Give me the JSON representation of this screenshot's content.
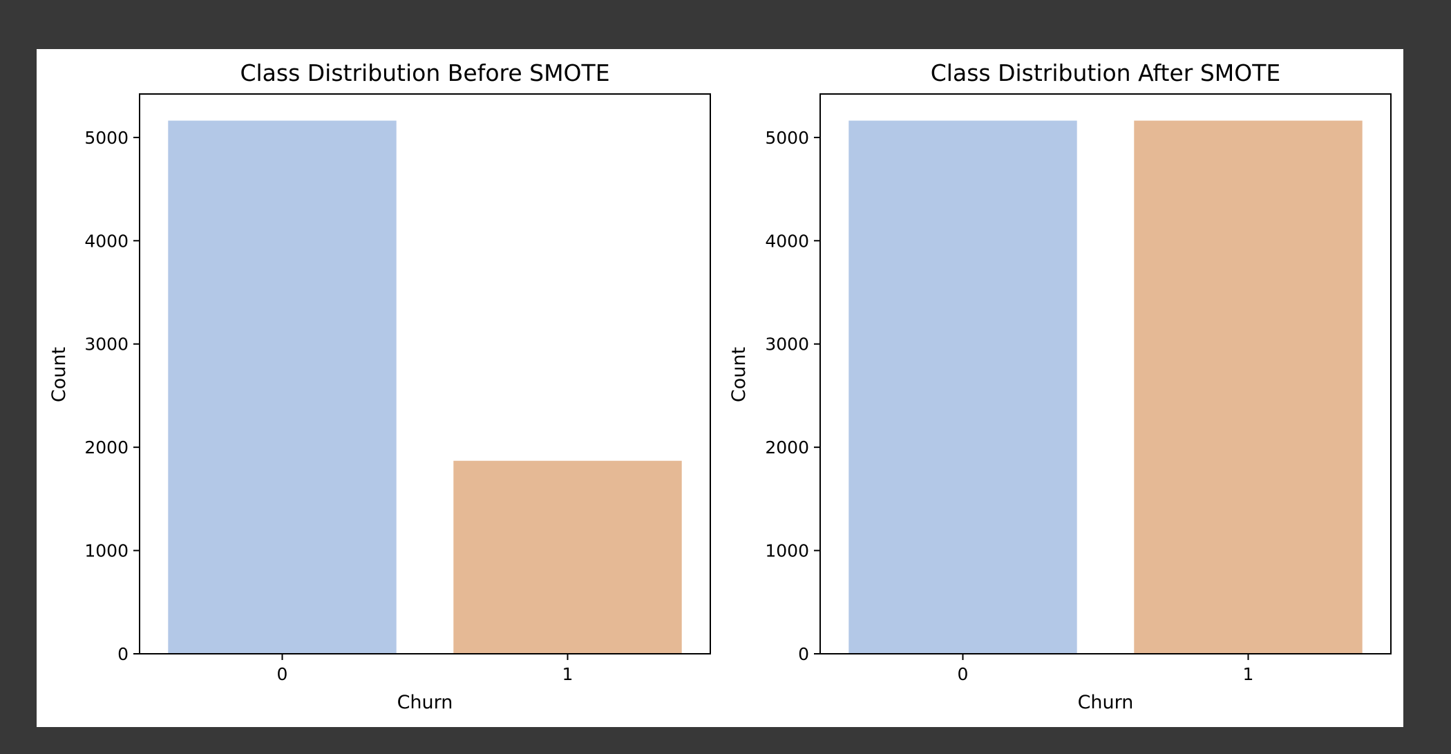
{
  "colors": {
    "background": "#383838",
    "canvas": "#ffffff",
    "frame": "#000000"
  },
  "chart_data": [
    {
      "type": "bar",
      "title": "Class Distribution Before SMOTE",
      "xlabel": "Churn",
      "ylabel": "Count",
      "categories": [
        "0",
        "1"
      ],
      "values": [
        5163,
        1869
      ],
      "colors": [
        "#b3c8e7",
        "#e5b995"
      ],
      "yticks": [
        0,
        1000,
        2000,
        3000,
        4000,
        5000
      ],
      "ylim": [
        0,
        5421
      ],
      "grid": false
    },
    {
      "type": "bar",
      "title": "Class Distribution After SMOTE",
      "xlabel": "Churn",
      "ylabel": "Count",
      "categories": [
        "0",
        "1"
      ],
      "values": [
        5163,
        5163
      ],
      "colors": [
        "#b3c8e7",
        "#e5b995"
      ],
      "yticks": [
        0,
        1000,
        2000,
        3000,
        4000,
        5000
      ],
      "ylim": [
        0,
        5421
      ],
      "grid": false
    }
  ]
}
